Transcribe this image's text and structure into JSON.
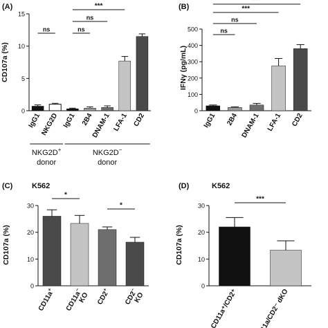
{
  "chart_data": [
    {
      "panel": "(A)",
      "type": "bar",
      "ylabel": "CD107a (%)",
      "ylim": [
        0,
        15
      ],
      "yticks": [
        0,
        5,
        10,
        15
      ],
      "categories": [
        "IgG1",
        "NKG2D",
        "IgG1",
        "2B4",
        "DNAM-1",
        "LFA-1",
        "CD2"
      ],
      "values": [
        0.7,
        1.0,
        0.3,
        0.4,
        0.5,
        7.7,
        11.5
      ],
      "errors": [
        0.2,
        0.15,
        0.1,
        0.2,
        0.25,
        0.7,
        0.4
      ],
      "colors": [
        "#111111",
        "#ffffff",
        "#111111",
        "#9a9a9a",
        "#6e6e6e",
        "#c4c4c4",
        "#4a4a4a"
      ],
      "groups": [
        {
          "label": "NKG2D",
          "sup": "+",
          "label2": "donor",
          "from": 0,
          "to": 1
        },
        {
          "label": "NKG2D",
          "sup": "−",
          "label2": "donor",
          "from": 2,
          "to": 6
        }
      ],
      "significance": [
        {
          "from": 0,
          "to": 1,
          "text": "ns"
        },
        {
          "from": 2,
          "to": 3,
          "text": "ns"
        },
        {
          "from": 2,
          "to": 4,
          "text": "ns"
        },
        {
          "from": 2,
          "to": 5,
          "text": "***"
        }
      ]
    },
    {
      "panel": "(B)",
      "type": "bar",
      "ylabel": "IFNγ (pg/mL)",
      "ylim": [
        0,
        500
      ],
      "yticks": [
        0,
        100,
        200,
        300,
        400,
        500
      ],
      "categories": [
        "IgG1",
        "2B4",
        "DNAM-1",
        "LFA-1",
        "CD2"
      ],
      "values": [
        30,
        20,
        35,
        275,
        380
      ],
      "errors": [
        5,
        4,
        10,
        45,
        25
      ],
      "colors": [
        "#111111",
        "#9a9a9a",
        "#6e6e6e",
        "#c4c4c4",
        "#4a4a4a"
      ],
      "significance": [
        {
          "from": 0,
          "to": 1,
          "text": "ns"
        },
        {
          "from": 0,
          "to": 2,
          "text": "ns"
        },
        {
          "from": 0,
          "to": 3,
          "text": "***"
        },
        {
          "from": 0,
          "to": 4,
          "text": "***"
        }
      ]
    },
    {
      "panel": "(C)",
      "title": "K562",
      "type": "bar",
      "ylabel": "CD107a (%)",
      "ylim": [
        0,
        30
      ],
      "yticks": [
        0,
        10,
        20,
        30
      ],
      "categories": [
        [
          "CD11a",
          "+",
          ""
        ],
        [
          "CD11a",
          "−",
          "KO"
        ],
        [
          "CD2",
          "+",
          ""
        ],
        [
          "CD2",
          "−",
          "KO"
        ]
      ],
      "values": [
        26,
        23.3,
        21,
        16.3
      ],
      "errors": [
        2.4,
        3.0,
        1.0,
        1.8
      ],
      "colors": [
        "#4a4a4a",
        "#c4c4c4",
        "#6e6e6e",
        "#4a4a4a"
      ],
      "significance": [
        {
          "from": 0,
          "to": 1,
          "text": "*"
        },
        {
          "from": 2,
          "to": 3,
          "text": "*"
        }
      ]
    },
    {
      "panel": "(D)",
      "title": "K562",
      "type": "bar",
      "ylabel": "CD107a (%)",
      "ylim": [
        0,
        30
      ],
      "yticks": [
        0,
        10,
        20,
        30
      ],
      "categories": [
        "CD11a⁺/CD2⁺",
        "CD11a/CD2⁻ dKO"
      ],
      "values": [
        22,
        13.3
      ],
      "errors": [
        3.5,
        3.5
      ],
      "colors": [
        "#111111",
        "#c4c4c4"
      ],
      "significance": [
        {
          "from": 0,
          "to": 1,
          "text": "***"
        }
      ]
    }
  ]
}
